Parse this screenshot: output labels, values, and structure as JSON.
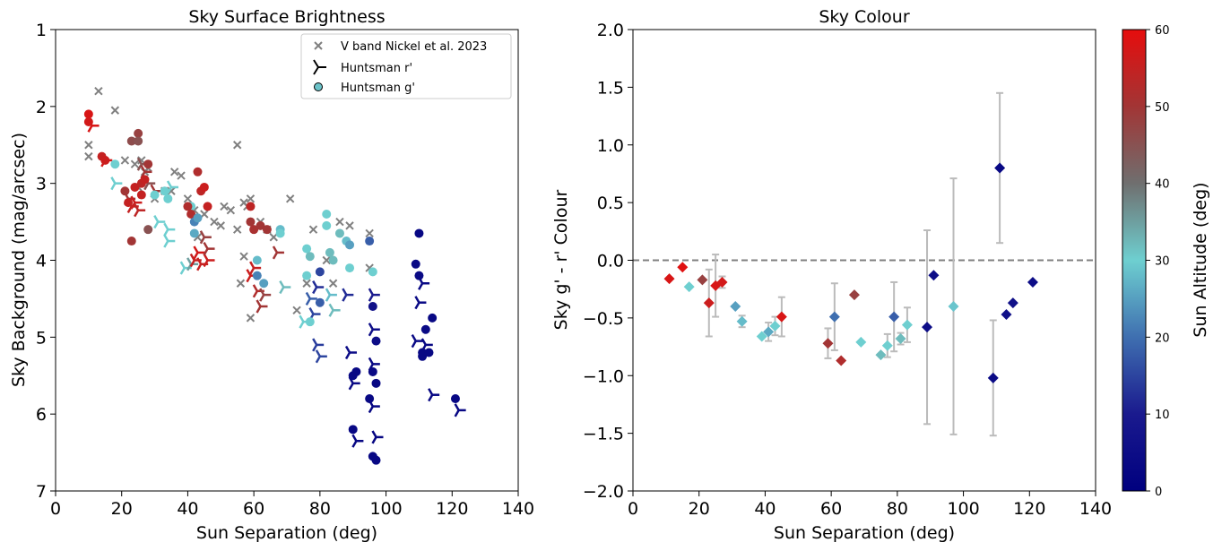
{
  "chart_data": [
    {
      "type": "scatter",
      "title": "Sky Surface Brightness",
      "xlabel": "Sun Separation (deg)",
      "ylabel": "Sky Background (mag/arcsec)",
      "xlim": [
        0,
        140
      ],
      "ylim": [
        1,
        7
      ],
      "y_inverted": true,
      "xticks": [
        "0",
        "20",
        "40",
        "60",
        "80",
        "100",
        "120",
        "140"
      ],
      "yticks": [
        "1",
        "2",
        "3",
        "4",
        "5",
        "6",
        "7"
      ],
      "legend": {
        "placement": "top-right",
        "entries": [
          {
            "label": "V band Nickel et al. 2023",
            "marker": "x",
            "color": "#808080"
          },
          {
            "label": "Huntsman r'",
            "marker": "tri",
            "color": "#000000"
          },
          {
            "label": "Huntsman g'",
            "marker": "circle",
            "color": "#6cc3c9"
          }
        ]
      },
      "series": [
        {
          "name": "V band Nickel et al. 2023",
          "marker": "x",
          "color": "#808080",
          "points": [
            [
              13,
              1.8
            ],
            [
              10,
              2.5
            ],
            [
              10,
              2.65
            ],
            [
              18,
              2.05
            ],
            [
              21,
              2.7
            ],
            [
              24,
              2.75
            ],
            [
              26,
              2.7
            ],
            [
              27,
              2.85
            ],
            [
              28,
              2.8
            ],
            [
              33,
              3.1
            ],
            [
              36,
              2.85
            ],
            [
              38,
              2.9
            ],
            [
              40,
              3.2
            ],
            [
              42,
              3.35
            ],
            [
              45,
              3.4
            ],
            [
              48,
              3.5
            ],
            [
              50,
              3.55
            ],
            [
              51,
              3.3
            ],
            [
              53,
              3.35
            ],
            [
              55,
              2.5
            ],
            [
              55,
              3.6
            ],
            [
              57,
              3.25
            ],
            [
              58,
              3.3
            ],
            [
              59,
              3.2
            ],
            [
              57,
              3.95
            ],
            [
              56,
              4.3
            ],
            [
              59,
              4.75
            ],
            [
              62,
              3.5
            ],
            [
              64,
              3.6
            ],
            [
              66,
              3.7
            ],
            [
              71,
              3.2
            ],
            [
              73,
              4.65
            ],
            [
              76,
              4.3
            ],
            [
              78,
              3.6
            ],
            [
              82,
              4.0
            ],
            [
              84,
              4.3
            ],
            [
              86,
              3.5
            ],
            [
              89,
              3.55
            ],
            [
              95,
              3.65
            ],
            [
              95,
              4.1
            ],
            [
              43,
              3.7
            ],
            [
              35,
              3.1
            ],
            [
              30,
              3.2
            ],
            [
              25,
              3.05
            ]
          ]
        },
        {
          "name": "Huntsman r'",
          "marker": "tri",
          "points": [
            [
              11,
              2.25,
              58
            ],
            [
              15,
              2.7,
              57
            ],
            [
              18,
              3.0,
              30
            ],
            [
              22,
              3.2,
              50
            ],
            [
              23,
              3.3,
              55
            ],
            [
              24,
              3.25,
              56
            ],
            [
              25,
              3.35,
              54
            ],
            [
              26,
              2.75,
              45
            ],
            [
              27,
              2.85,
              50
            ],
            [
              28,
              3.0,
              45
            ],
            [
              30,
              3.1,
              50
            ],
            [
              31,
              3.5,
              30
            ],
            [
              34,
              3.6,
              30
            ],
            [
              34,
              3.75,
              30
            ],
            [
              35,
              3.05,
              30
            ],
            [
              39,
              4.1,
              30
            ],
            [
              41,
              4.05,
              35
            ],
            [
              42,
              4.0,
              55
            ],
            [
              43,
              3.9,
              57
            ],
            [
              44,
              4.05,
              55
            ],
            [
              45,
              3.7,
              48
            ],
            [
              46,
              4.0,
              56
            ],
            [
              46,
              3.85,
              50
            ],
            [
              59,
              4.2,
              56
            ],
            [
              60,
              4.1,
              55
            ],
            [
              61,
              4.4,
              52
            ],
            [
              62,
              4.6,
              50
            ],
            [
              63,
              4.45,
              48
            ],
            [
              67,
              3.9,
              50
            ],
            [
              69,
              4.35,
              32
            ],
            [
              75,
              4.8,
              30
            ],
            [
              77,
              4.5,
              18
            ],
            [
              78,
              4.7,
              15
            ],
            [
              79,
              5.1,
              14
            ],
            [
              80,
              5.25,
              15
            ],
            [
              79,
              4.35,
              12
            ],
            [
              83,
              4.45,
              28
            ],
            [
              84,
              4.65,
              32
            ],
            [
              88,
              4.45,
              12
            ],
            [
              89,
              5.2,
              5
            ],
            [
              90,
              5.6,
              4
            ],
            [
              91,
              6.35,
              3
            ],
            [
              96,
              4.45,
              10
            ],
            [
              96,
              4.9,
              5
            ],
            [
              96,
              5.35,
              3
            ],
            [
              96,
              5.9,
              2
            ],
            [
              97,
              6.3,
              2
            ],
            [
              109,
              5.05,
              4
            ],
            [
              110,
              4.55,
              4
            ],
            [
              111,
              4.3,
              3
            ],
            [
              112,
              5.1,
              3
            ],
            [
              114,
              5.75,
              3
            ],
            [
              122,
              5.95,
              3
            ]
          ]
        },
        {
          "name": "Huntsman g'",
          "marker": "circle",
          "points": [
            [
              10,
              2.1,
              58
            ],
            [
              10,
              2.2,
              57
            ],
            [
              14,
              2.65,
              55
            ],
            [
              15,
              2.7,
              56
            ],
            [
              18,
              2.75,
              30
            ],
            [
              21,
              3.1,
              50
            ],
            [
              22,
              3.25,
              55
            ],
            [
              23,
              2.45,
              46
            ],
            [
              24,
              3.05,
              55
            ],
            [
              25,
              2.35,
              48
            ],
            [
              25,
              2.45,
              45
            ],
            [
              26,
              3.0,
              54
            ],
            [
              26,
              3.15,
              55
            ],
            [
              27,
              2.95,
              55
            ],
            [
              28,
              2.75,
              50
            ],
            [
              28,
              3.6,
              45
            ],
            [
              23,
              3.75,
              50
            ],
            [
              30,
              3.15,
              30
            ],
            [
              33,
              3.1,
              30
            ],
            [
              34,
              3.2,
              30
            ],
            [
              41,
              3.3,
              30
            ],
            [
              40,
              3.3,
              52
            ],
            [
              41,
              3.4,
              52
            ],
            [
              42,
              3.5,
              22
            ],
            [
              42,
              3.65,
              26
            ],
            [
              43,
              3.45,
              25
            ],
            [
              44,
              3.1,
              54
            ],
            [
              45,
              3.05,
              56
            ],
            [
              46,
              3.3,
              55
            ],
            [
              43,
              2.85,
              52
            ],
            [
              59,
              3.3,
              54
            ],
            [
              59,
              3.5,
              50
            ],
            [
              60,
              3.6,
              51
            ],
            [
              62,
              3.55,
              50
            ],
            [
              64,
              3.6,
              50
            ],
            [
              61,
              4.0,
              28
            ],
            [
              61,
              4.2,
              22
            ],
            [
              63,
              4.3,
              25
            ],
            [
              68,
              3.6,
              28
            ],
            [
              68,
              3.65,
              30
            ],
            [
              76,
              3.85,
              30
            ],
            [
              76,
              4.2,
              30
            ],
            [
              77,
              3.95,
              32
            ],
            [
              77,
              4.8,
              30
            ],
            [
              80,
              4.15,
              15
            ],
            [
              80,
              4.55,
              18
            ],
            [
              82,
              3.4,
              30
            ],
            [
              82,
              3.55,
              30
            ],
            [
              83,
              3.9,
              32
            ],
            [
              84,
              4.0,
              32
            ],
            [
              86,
              3.65,
              32
            ],
            [
              88,
              3.75,
              28
            ],
            [
              89,
              3.8,
              25
            ],
            [
              89,
              4.1,
              30
            ],
            [
              95,
              3.75,
              18
            ],
            [
              96,
              4.15,
              30
            ],
            [
              96,
              4.6,
              6
            ],
            [
              97,
              5.05,
              5
            ],
            [
              96,
              5.45,
              4
            ],
            [
              97,
              5.6,
              3
            ],
            [
              95,
              5.8,
              3
            ],
            [
              96,
              6.55,
              3
            ],
            [
              97,
              6.6,
              3
            ],
            [
              110,
              3.65,
              3
            ],
            [
              109,
              4.05,
              4
            ],
            [
              110,
              4.2,
              4
            ],
            [
              112,
              4.9,
              4
            ],
            [
              111,
              5.2,
              3
            ],
            [
              111,
              5.25,
              3
            ],
            [
              113,
              5.2,
              3
            ],
            [
              114,
              4.75,
              3
            ],
            [
              121,
              5.8,
              3
            ],
            [
              90,
              6.2,
              3
            ],
            [
              90,
              5.5,
              3
            ],
            [
              91,
              5.45,
              3
            ]
          ]
        }
      ]
    },
    {
      "type": "scatter",
      "title": "Sky Colour",
      "xlabel": "Sun Separation (deg)",
      "ylabel": "Sky g' - r' Colour",
      "xlim": [
        0,
        140
      ],
      "ylim": [
        -2.0,
        2.0
      ],
      "xticks": [
        "0",
        "20",
        "40",
        "60",
        "80",
        "100",
        "120",
        "140"
      ],
      "yticks": [
        "2.0",
        "1.5",
        "1.0",
        "0.5",
        "0.0",
        "−0.5",
        "−1.0",
        "−1.5",
        "−2.0"
      ],
      "reference_line": {
        "y": 0.0,
        "style": "dashed",
        "color": "#808080"
      },
      "series": [
        {
          "marker": "diamond",
          "points": [
            [
              11,
              -0.16,
              58,
              0
            ],
            [
              15,
              -0.06,
              59,
              0
            ],
            [
              17,
              -0.23,
              30,
              0
            ],
            [
              21,
              -0.17,
              48,
              0
            ],
            [
              23,
              -0.37,
              56,
              0.29
            ],
            [
              25,
              -0.22,
              58,
              0.27
            ],
            [
              27,
              -0.19,
              57,
              0.05
            ],
            [
              31,
              -0.4,
              25,
              0
            ],
            [
              33,
              -0.53,
              28,
              0.05
            ],
            [
              39,
              -0.66,
              30,
              0
            ],
            [
              41,
              -0.62,
              26,
              0.08
            ],
            [
              43,
              -0.57,
              30,
              0.08
            ],
            [
              45,
              -0.49,
              58,
              0.17
            ],
            [
              59,
              -0.72,
              50,
              0.13
            ],
            [
              61,
              -0.49,
              20,
              0.29
            ],
            [
              63,
              -0.87,
              52,
              0
            ],
            [
              67,
              -0.3,
              48,
              0
            ],
            [
              69,
              -0.71,
              30,
              0
            ],
            [
              75,
              -0.82,
              32,
              0
            ],
            [
              77,
              -0.74,
              30,
              0.1
            ],
            [
              79,
              -0.49,
              18,
              0.3
            ],
            [
              81,
              -0.68,
              32,
              0.05
            ],
            [
              83,
              -0.56,
              30,
              0.15
            ],
            [
              89,
              -0.58,
              5,
              0.84
            ],
            [
              91,
              -0.13,
              5,
              0
            ],
            [
              97,
              -0.4,
              29,
              1.11
            ],
            [
              109,
              -1.02,
              4,
              0.5
            ],
            [
              111,
              0.8,
              3,
              0.65
            ],
            [
              113,
              -0.47,
              6,
              0
            ],
            [
              115,
              -0.37,
              6,
              0
            ],
            [
              121,
              -0.19,
              5,
              0
            ]
          ]
        }
      ]
    },
    {
      "type": "colorbar",
      "label": "Sun Altitude (deg)",
      "range": [
        0,
        60
      ],
      "ticks": [
        "0",
        "10",
        "20",
        "30",
        "40",
        "50",
        "60"
      ],
      "colormap": [
        "#00007f",
        "#1a1a8e",
        "#3f6fb0",
        "#6ecfd0",
        "#6f6f6f",
        "#a23535",
        "#e60d0d"
      ]
    }
  ]
}
